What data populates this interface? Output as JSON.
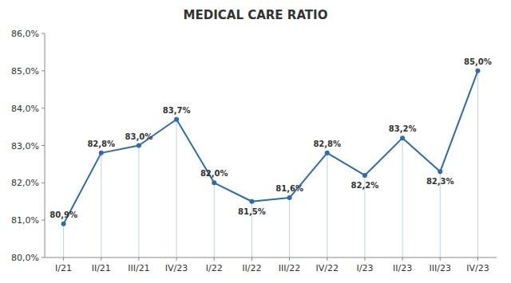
{
  "chart_data": {
    "type": "line",
    "title": "MEDICAL CARE RATIO",
    "categories": [
      "I/21",
      "II/21",
      "III/21",
      "IV/23",
      "I/22",
      "II/22",
      "III/22",
      "IV/22",
      "I/23",
      "II/23",
      "III/23",
      "IV/23"
    ],
    "values": [
      80.9,
      82.8,
      83.0,
      83.7,
      82.0,
      81.5,
      81.6,
      82.8,
      82.2,
      83.2,
      82.3,
      85.0
    ],
    "value_labels": [
      "80,9%",
      "82,8%",
      "83,0%",
      "83,7%",
      "82,0%",
      "81,5%",
      "81,6%",
      "82,8%",
      "82,2%",
      "83,2%",
      "82,3%",
      "85,0%"
    ],
    "ylim": [
      80.0,
      86.0
    ],
    "yticks": [
      {
        "value": 80.0,
        "label": "80,0%"
      },
      {
        "value": 81.0,
        "label": "81,0%"
      },
      {
        "value": 82.0,
        "label": "82,0%"
      },
      {
        "value": 83.0,
        "label": "83,0%"
      },
      {
        "value": 84.0,
        "label": "84,0%"
      },
      {
        "value": 85.0,
        "label": "85,0%"
      },
      {
        "value": 86.0,
        "label": "86,0%"
      }
    ],
    "grid": false,
    "data_labels": true
  }
}
